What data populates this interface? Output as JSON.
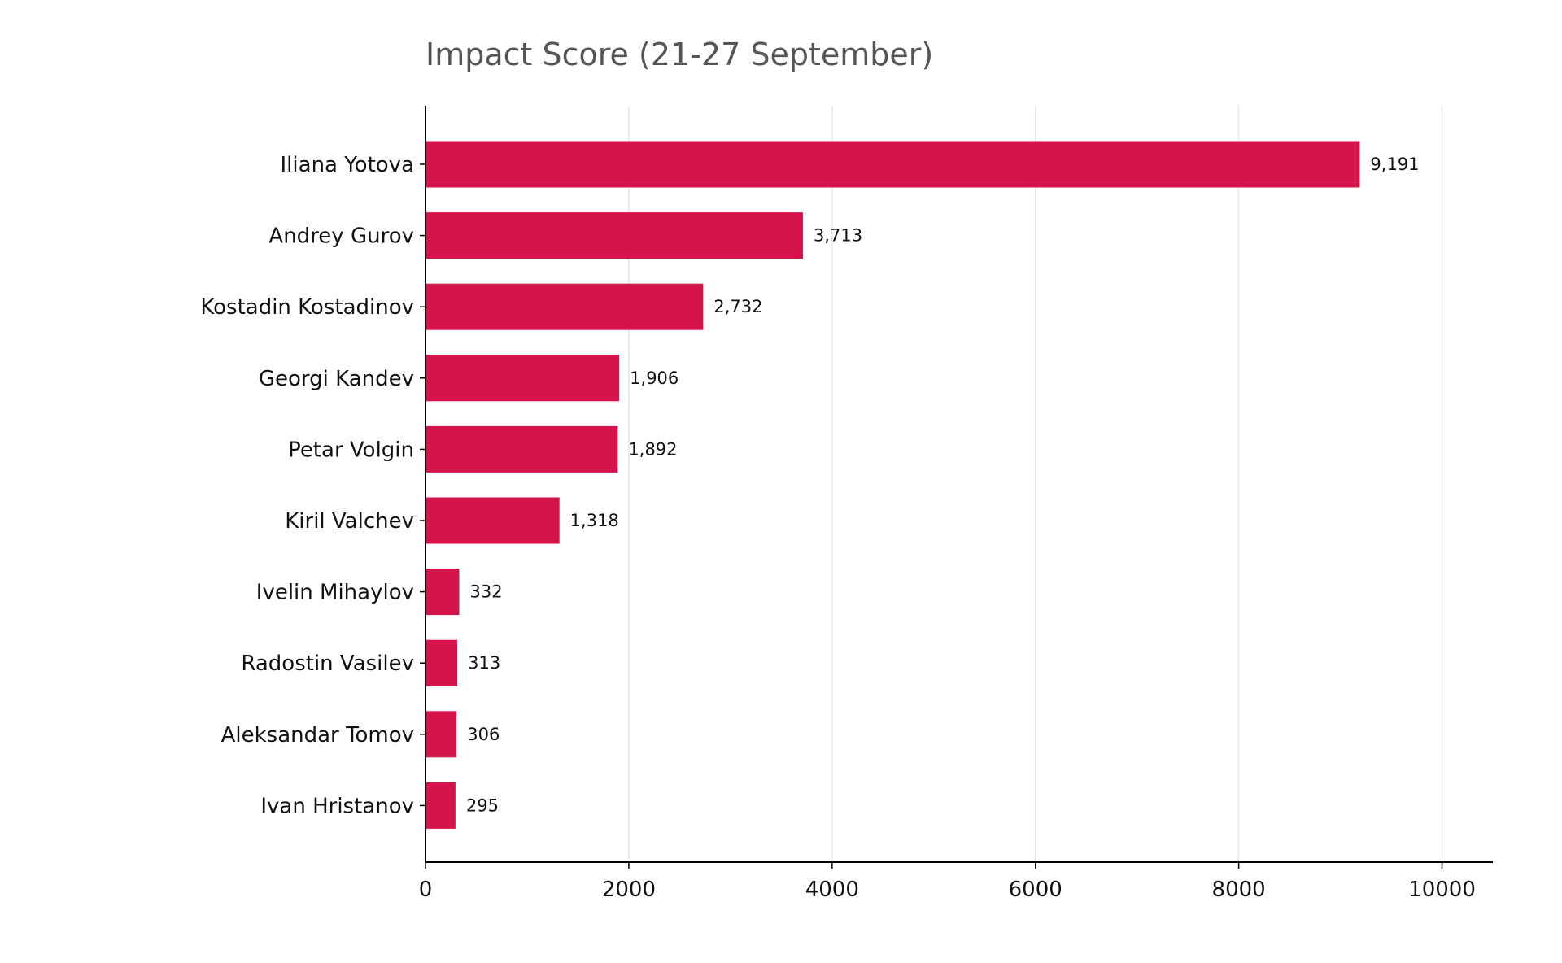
{
  "chart_data": {
    "type": "bar",
    "orientation": "horizontal",
    "title": "Impact Score (21-27 September)",
    "xlabel": "",
    "ylabel": "",
    "categories": [
      "Iliana Yotova",
      "Andrey Gurov",
      "Kostadin Kostadinov",
      "Georgi Kandev",
      "Petar Volgin",
      "Kiril Valchev",
      "Ivelin Mihaylov",
      "Radostin Vasilev",
      "Aleksandar Tomov",
      "Ivan Hristanov"
    ],
    "values": [
      9191,
      3713,
      2732,
      1906,
      1892,
      1318,
      332,
      313,
      306,
      295
    ],
    "data_labels": [
      "9,191",
      "3,713",
      "2,732",
      "1,906",
      "1,892",
      "1,318",
      "332",
      "313",
      "306",
      "295"
    ],
    "xlim": [
      0,
      10500
    ],
    "xticks": [
      0,
      2000,
      4000,
      6000,
      8000,
      10000
    ],
    "xtick_labels": [
      "0",
      "2000",
      "4000",
      "6000",
      "8000",
      "10000"
    ],
    "grid": "vertical",
    "legend": "none",
    "bar_color": "#d6144c",
    "grid_color": "#e6e6e6",
    "axis_color": "#000000",
    "title_color": "#555555"
  }
}
